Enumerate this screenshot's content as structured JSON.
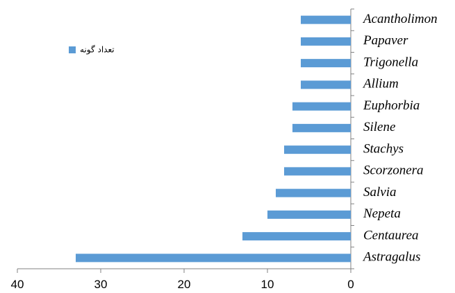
{
  "chart_data": {
    "type": "bar",
    "orientation": "horizontal",
    "categories": [
      "Acantholimon",
      "Papaver",
      "Trigonella",
      "Allium",
      "Euphorbia",
      "Silene",
      "Stachys",
      "Scorzonera",
      "Salvia",
      "Nepeta",
      "Centaurea",
      "Astragalus"
    ],
    "series": [
      {
        "name": "تعداد گونه",
        "color": "#5b9bd5",
        "values": [
          6,
          6,
          6,
          6,
          7,
          7,
          8,
          8,
          9,
          10,
          13,
          33
        ]
      }
    ],
    "xlim": [
      0,
      40
    ],
    "xticks": [
      0,
      10,
      20,
      30,
      40
    ],
    "x_inverted": true,
    "legend": "upper left",
    "grid": false
  }
}
